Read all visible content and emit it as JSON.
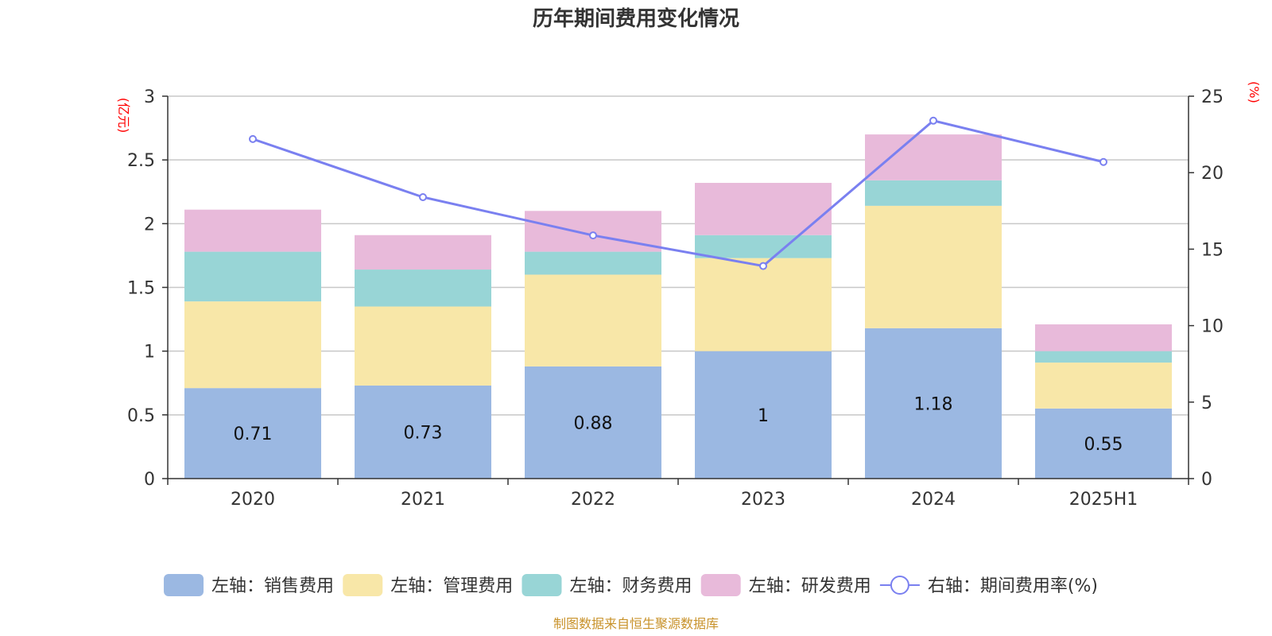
{
  "chart_data": {
    "type": "bar",
    "title": "历年期间费用变化情况",
    "categories": [
      "2020",
      "2021",
      "2022",
      "2023",
      "2024",
      "2025H1"
    ],
    "left_axis": {
      "unit": "(亿元)",
      "ylim": [
        0,
        3
      ],
      "ticks": [
        "0",
        "0.5",
        "1",
        "1.5",
        "2",
        "2.5",
        "3"
      ]
    },
    "right_axis": {
      "unit": "(%)",
      "ylim": [
        0,
        25
      ],
      "ticks": [
        "0",
        "5",
        "10",
        "15",
        "20",
        "25"
      ]
    },
    "series": [
      {
        "name": "左轴：销售费用",
        "type": "bar",
        "stack": true,
        "axis": "left",
        "color": "#9bb8e2",
        "values": [
          0.71,
          0.73,
          0.88,
          1.0,
          1.18,
          0.55
        ],
        "labels": [
          "0.71",
          "0.73",
          "0.88",
          "1",
          "1.18",
          "0.55"
        ]
      },
      {
        "name": "左轴：管理费用",
        "type": "bar",
        "stack": true,
        "axis": "left",
        "color": "#f8e7a8",
        "values": [
          0.68,
          0.62,
          0.72,
          0.73,
          0.96,
          0.36
        ]
      },
      {
        "name": "左轴：财务费用",
        "type": "bar",
        "stack": true,
        "axis": "left",
        "color": "#98d5d6",
        "values": [
          0.39,
          0.29,
          0.18,
          0.18,
          0.2,
          0.09
        ]
      },
      {
        "name": "左轴：研发费用",
        "type": "bar",
        "stack": true,
        "axis": "left",
        "color": "#e8bada",
        "values": [
          0.33,
          0.27,
          0.32,
          0.41,
          0.36,
          0.21
        ]
      },
      {
        "name": "右轴：期间费用率(%)",
        "type": "line",
        "axis": "right",
        "color": "#7a80f0",
        "values": [
          22.2,
          18.4,
          15.9,
          13.9,
          23.4,
          20.7
        ]
      }
    ],
    "grid": true,
    "legend": "bottom",
    "source": "制图数据来自恒生聚源数据库"
  }
}
